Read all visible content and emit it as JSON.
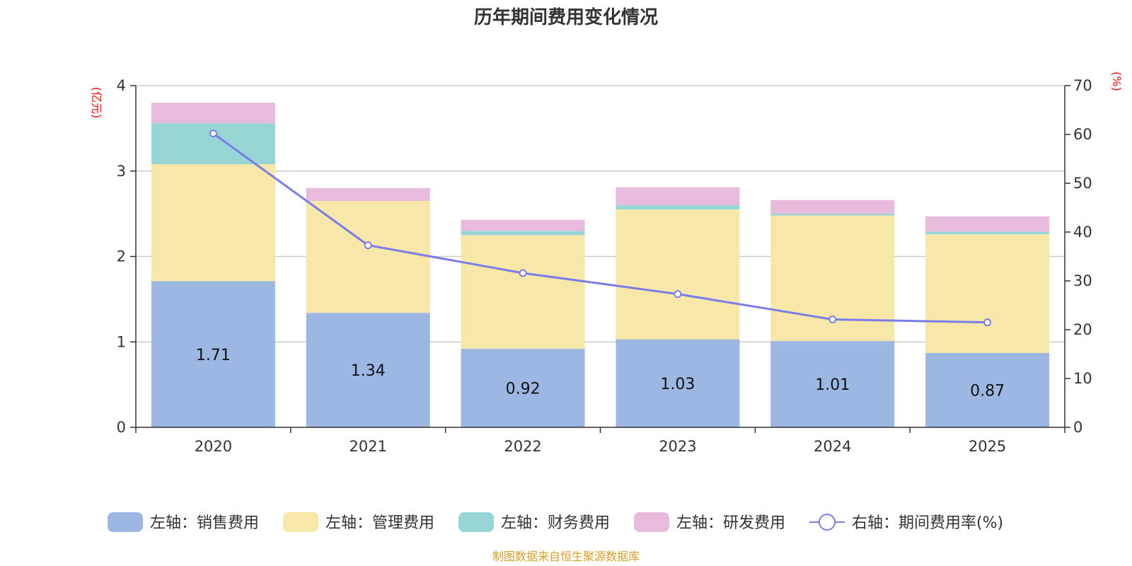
{
  "chart_data": {
    "type": "bar",
    "stacked": true,
    "title": "历年期间费用变化情况",
    "categories": [
      "2020",
      "2021",
      "2022",
      "2023",
      "2024",
      "2025"
    ],
    "left_axis": {
      "unit_label": "(亿元)",
      "ylim": [
        0,
        4
      ],
      "ticks": [
        "0",
        "1",
        "2",
        "3",
        "4"
      ],
      "tick_values": [
        0,
        1,
        2,
        3,
        4
      ]
    },
    "right_axis": {
      "unit_label": "(%)",
      "ylim": [
        0,
        70
      ],
      "ticks": [
        "0",
        "10",
        "20",
        "30",
        "40",
        "50",
        "60",
        "70"
      ],
      "tick_values": [
        0,
        10,
        20,
        30,
        40,
        50,
        60,
        70
      ]
    },
    "series": [
      {
        "name": "左轴：销售费用",
        "color": "#9cb8e2",
        "values": [
          1.71,
          1.34,
          0.92,
          1.03,
          1.01,
          0.87
        ],
        "labels": [
          "1.71",
          "1.34",
          "0.92",
          "1.03",
          "1.01",
          "0.87"
        ]
      },
      {
        "name": "左轴：管理费用",
        "color": "#f7e7a8",
        "values": [
          1.37,
          1.31,
          1.33,
          1.52,
          1.47,
          1.39
        ]
      },
      {
        "name": "左轴：财务费用",
        "color": "#98d6d5",
        "values": [
          0.48,
          0.0,
          0.05,
          0.05,
          0.02,
          0.03
        ]
      },
      {
        "name": "左轴：研发费用",
        "color": "#e8bbdc",
        "values": [
          0.24,
          0.15,
          0.13,
          0.21,
          0.16,
          0.18
        ]
      },
      {
        "name": "右轴：期间费用率(%)",
        "color": "#7a7de8",
        "type": "line",
        "axis": "right",
        "values": [
          60.2,
          37.3,
          31.6,
          27.3,
          22.1,
          21.5
        ]
      }
    ],
    "grid": true,
    "legend": "bottom"
  },
  "footer": {
    "source": "制图数据来自恒生聚源数据库"
  }
}
